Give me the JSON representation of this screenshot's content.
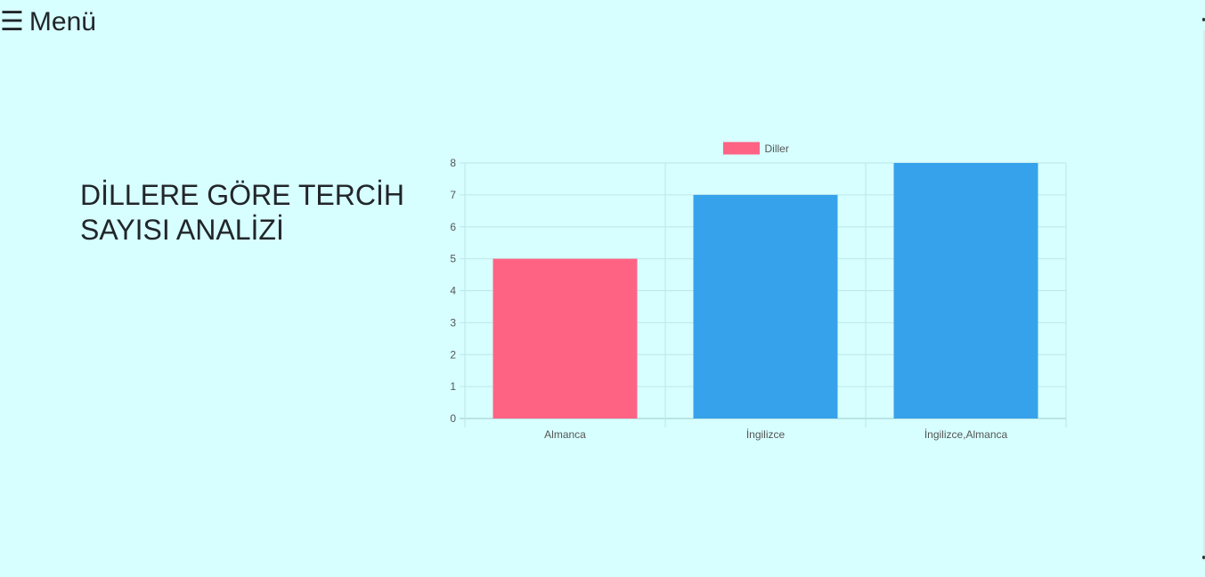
{
  "menu": {
    "icon": "hamburger-icon",
    "label": "Menü"
  },
  "heading": "DİLLERE GÖRE TERCİH SAYISI ANALİZİ",
  "chart_data": {
    "type": "bar",
    "categories": [
      "Almanca",
      "İngilizce",
      "İngilizce,Almanca"
    ],
    "series": [
      {
        "name": "Diller",
        "values": [
          5,
          7,
          8
        ],
        "colors": [
          "#ff6384",
          "#36a2eb",
          "#36a2eb"
        ]
      }
    ],
    "legend": "top",
    "legend_color": "#ff6384",
    "ylim": [
      0,
      8
    ],
    "yticks": [
      0,
      1,
      2,
      3,
      4,
      5,
      6,
      7,
      8
    ],
    "grid": true
  }
}
